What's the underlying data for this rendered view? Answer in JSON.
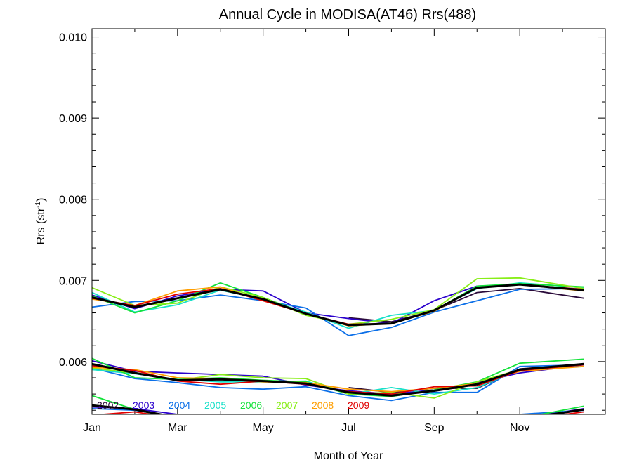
{
  "chart_data": {
    "type": "line",
    "title": "Annual Cycle in MODISA(AT46) Rrs(488)",
    "xlabel": "Month of Year",
    "ylabel": "Rrs (str",
    "ylabel_sup": "-1",
    "ylabel_close": ")",
    "xlim": [
      0,
      12
    ],
    "ylim": [
      0.00535,
      0.0101
    ],
    "x_ticks": [
      {
        "x": 0,
        "label": "Jan"
      },
      {
        "x": 2,
        "label": "Mar"
      },
      {
        "x": 4,
        "label": "May"
      },
      {
        "x": 6,
        "label": "Jul"
      },
      {
        "x": 8,
        "label": "Sep"
      },
      {
        "x": 10,
        "label": "Nov"
      }
    ],
    "y_ticks": [
      {
        "y": 0.006,
        "label": "0.006"
      },
      {
        "y": 0.007,
        "label": "0.007"
      },
      {
        "y": 0.008,
        "label": "0.008"
      },
      {
        "y": 0.009,
        "label": "0.009"
      },
      {
        "y": 0.01,
        "label": "0.010"
      }
    ],
    "legend_placement": "bottom-left",
    "x": [
      0,
      1,
      2,
      3,
      4,
      5,
      6,
      7,
      8,
      9,
      10,
      11.5
    ],
    "upper_band": [
      {
        "name": "2002",
        "color": "#2a0a3a",
        "values": [
          null,
          null,
          null,
          null,
          null,
          null,
          0.00654,
          0.00649,
          0.00663,
          0.00685,
          0.0069,
          0.00678
        ]
      },
      {
        "name": "2003",
        "color": "#2a00cc",
        "values": [
          0.00682,
          0.00665,
          0.00681,
          0.00689,
          0.00687,
          0.0066,
          0.00653,
          0.00647,
          0.00675,
          0.00693,
          0.00695,
          0.00688
        ]
      },
      {
        "name": "2004",
        "color": "#0b6fe8",
        "values": [
          0.00667,
          0.00674,
          0.00675,
          0.00682,
          0.00675,
          0.00666,
          0.00632,
          0.00642,
          0.00661,
          0.00675,
          0.00689,
          0.0069
        ]
      },
      {
        "name": "2005",
        "color": "#18e0c8",
        "values": [
          0.00685,
          0.00661,
          0.0067,
          0.00688,
          0.00677,
          0.00661,
          0.00641,
          0.00657,
          0.00663,
          0.0069,
          0.00697,
          0.00691
        ]
      },
      {
        "name": "2006",
        "color": "#13e23a",
        "values": [
          0.00681,
          0.0066,
          0.00675,
          0.00697,
          0.00679,
          0.00659,
          0.00645,
          0.00647,
          0.00663,
          0.00693,
          0.00696,
          0.00692
        ]
      },
      {
        "name": "2007",
        "color": "#88ee18",
        "values": [
          0.00691,
          0.00669,
          0.00672,
          0.00692,
          0.00679,
          0.00657,
          0.00646,
          0.00652,
          0.00664,
          0.00702,
          0.00703,
          0.0069
        ]
      },
      {
        "name": "2008",
        "color": "#ff9e00",
        "values": [
          0.00677,
          0.00669,
          0.00687,
          0.00692,
          0.00675,
          0.00659,
          0.00644,
          0.00647,
          0.00662,
          0.00691,
          0.00695,
          0.00687
        ]
      },
      {
        "name": "2009",
        "color": "#e00000",
        "values": [
          0.00678,
          0.00669,
          0.00683,
          0.0069,
          0.00675,
          0.00659,
          0.00646,
          0.00647,
          0.00663,
          0.00691,
          0.00695,
          0.00689
        ]
      },
      {
        "name": "",
        "color": "#000000",
        "values": [
          0.00679,
          0.00667,
          0.00678,
          0.00689,
          0.00677,
          0.00659,
          0.00645,
          0.00647,
          0.00663,
          0.00691,
          0.00695,
          0.00688
        ]
      }
    ],
    "lower_band": [
      {
        "name": "2002",
        "color": "#2a0a3a",
        "values": [
          null,
          null,
          null,
          null,
          null,
          null,
          0.00568,
          0.00562,
          0.00567,
          0.00567,
          0.00591,
          0.00597
        ]
      },
      {
        "name": "2003",
        "color": "#2a00cc",
        "values": [
          0.00601,
          0.00588,
          0.00586,
          0.00584,
          0.00582,
          0.00571,
          0.00564,
          0.0056,
          0.00565,
          0.00574,
          0.00586,
          0.00596
        ]
      },
      {
        "name": "2004",
        "color": "#0b6fe8",
        "values": [
          0.00592,
          0.00579,
          0.00574,
          0.00568,
          0.00566,
          0.00569,
          0.00558,
          0.00552,
          0.00562,
          0.00562,
          0.00594,
          0.00596
        ]
      },
      {
        "name": "2005",
        "color": "#18e0c8",
        "values": [
          0.0059,
          0.00585,
          0.00578,
          0.00575,
          0.00575,
          0.00576,
          0.0056,
          0.00568,
          0.0056,
          0.00568,
          0.0059,
          0.00594
        ]
      },
      {
        "name": "2006",
        "color": "#13e23a",
        "values": [
          0.00604,
          0.0058,
          0.00578,
          0.0058,
          0.00577,
          0.00575,
          0.0056,
          0.00557,
          0.00565,
          0.00575,
          0.00598,
          0.00603
        ]
      },
      {
        "name": "2007",
        "color": "#88ee18",
        "values": [
          0.00592,
          0.00586,
          0.00577,
          0.00584,
          0.0058,
          0.00579,
          0.0056,
          0.00562,
          0.00555,
          0.00575,
          0.0059,
          0.00597
        ]
      },
      {
        "name": "2008",
        "color": "#ff9e00",
        "values": [
          0.00593,
          0.0059,
          0.0058,
          0.00579,
          0.00575,
          0.00574,
          0.00566,
          0.00563,
          0.00567,
          0.00573,
          0.00588,
          0.00594
        ]
      },
      {
        "name": "2009",
        "color": "#e00000",
        "values": [
          0.00595,
          0.00589,
          0.00576,
          0.00572,
          0.00576,
          0.00572,
          0.00563,
          0.0056,
          0.00569,
          0.0057,
          0.00589,
          0.00596
        ]
      },
      {
        "name": "",
        "color": "#000000",
        "values": [
          0.00597,
          0.00586,
          0.00577,
          0.00578,
          0.00576,
          0.00573,
          0.00562,
          0.00558,
          0.00564,
          0.00572,
          0.0059,
          0.00597
        ]
      }
    ],
    "bottom_band": [
      {
        "name": "2003",
        "color": "#2a00cc",
        "values": [
          0.00544,
          0.00542,
          0.00535,
          null,
          null,
          null,
          null,
          null,
          null,
          null,
          0.0053,
          0.00542
        ]
      },
      {
        "name": "2004",
        "color": "#0b6fe8",
        "values": [
          0.00542,
          0.0054,
          0.00532,
          null,
          null,
          null,
          null,
          null,
          null,
          null,
          0.00535,
          0.0054
        ]
      },
      {
        "name": "2006",
        "color": "#13e23a",
        "values": [
          0.00558,
          0.00541,
          0.00529,
          null,
          null,
          null,
          null,
          null,
          null,
          null,
          0.0053,
          0.00545
        ]
      },
      {
        "name": "2009",
        "color": "#e00000",
        "values": [
          0.00534,
          0.00538,
          0.0053,
          null,
          null,
          null,
          null,
          null,
          null,
          null,
          0.00528,
          0.00538
        ]
      },
      {
        "name": "",
        "color": "#000000",
        "values": [
          0.00546,
          0.00541,
          0.00531,
          null,
          null,
          null,
          null,
          null,
          null,
          null,
          0.00529,
          0.00541
        ]
      }
    ],
    "legend": [
      {
        "label": "2002",
        "color": "#2a0a3a"
      },
      {
        "label": "2003",
        "color": "#2a00cc"
      },
      {
        "label": "2004",
        "color": "#0b6fe8"
      },
      {
        "label": "2005",
        "color": "#18e0c8"
      },
      {
        "label": "2006",
        "color": "#13e23a"
      },
      {
        "label": "2007",
        "color": "#88ee18"
      },
      {
        "label": "2008",
        "color": "#ff9e00"
      },
      {
        "label": "2009",
        "color": "#e00000"
      }
    ]
  }
}
